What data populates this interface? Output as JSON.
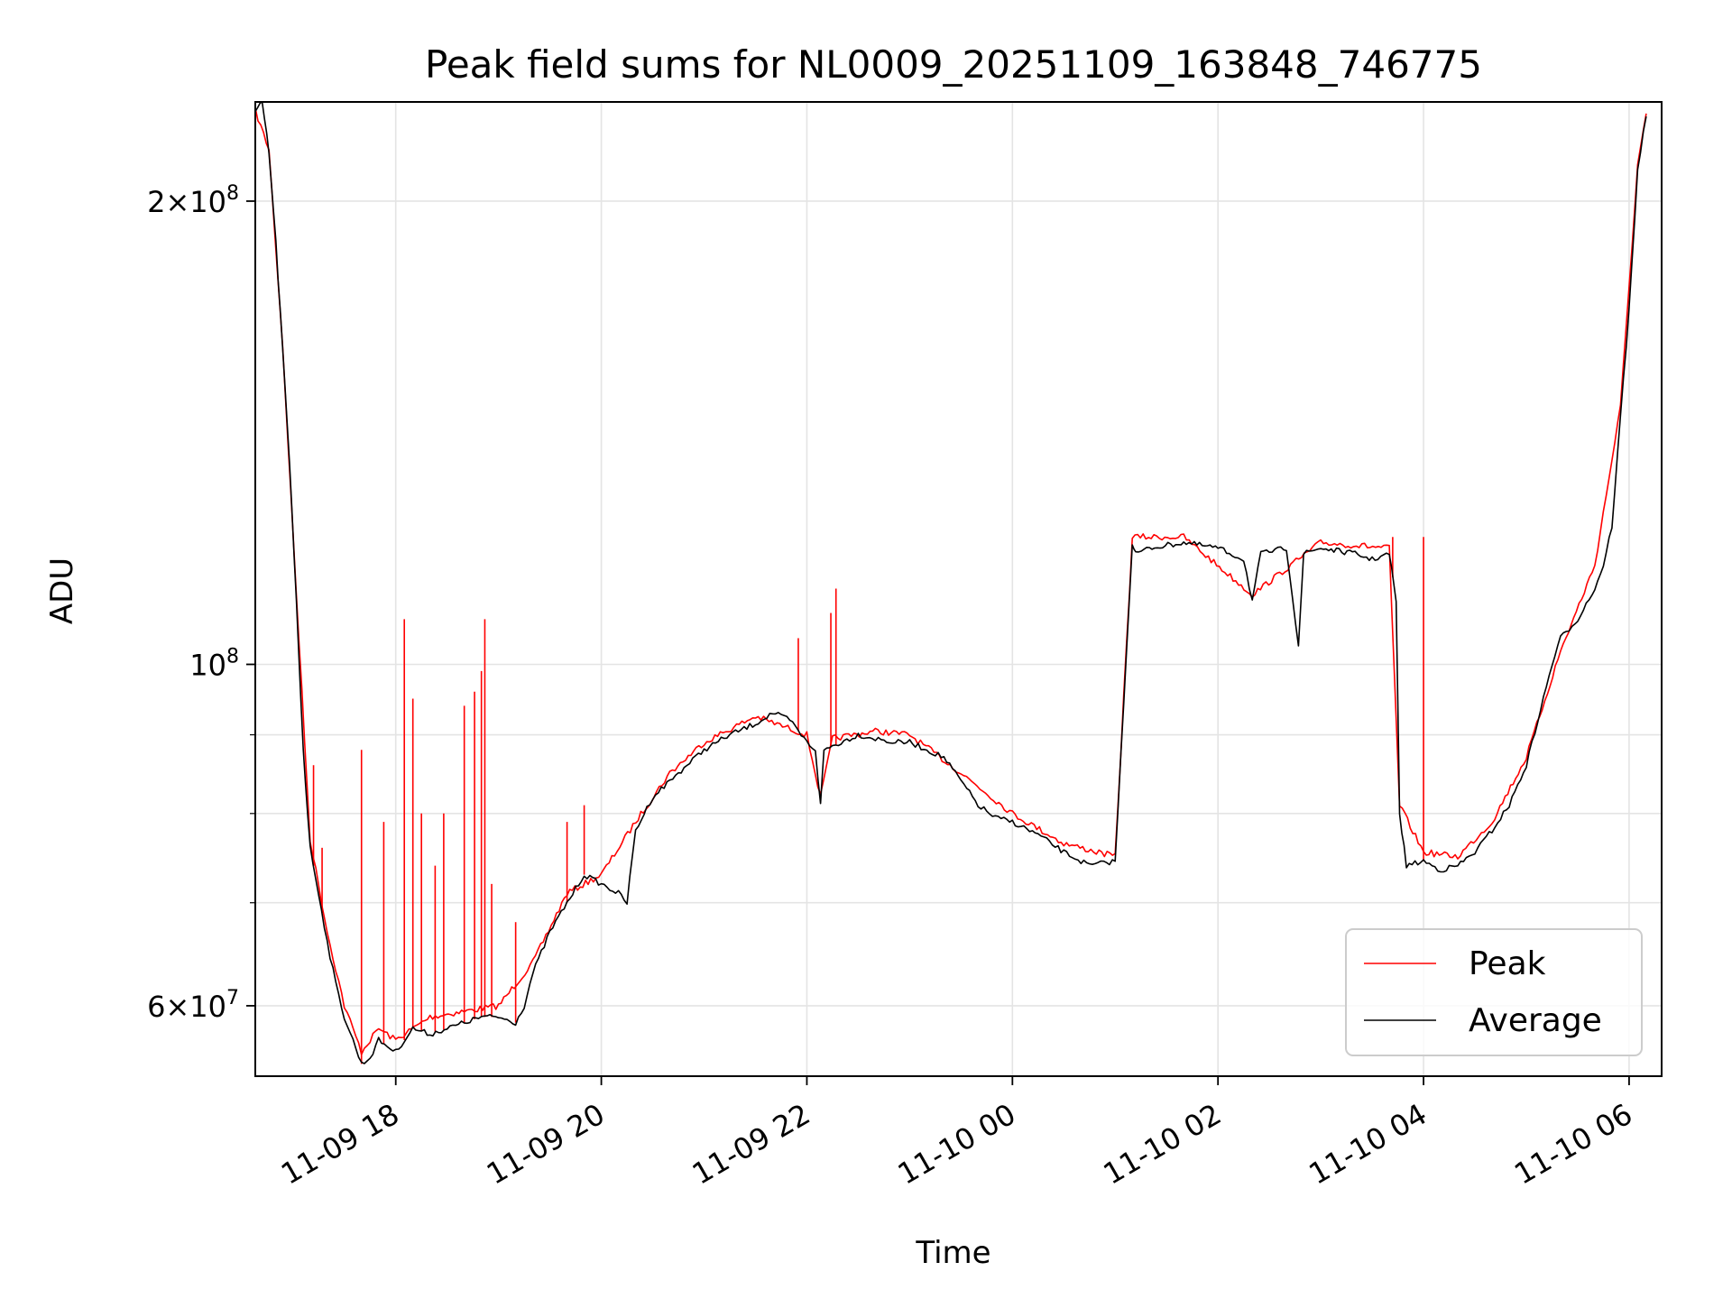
{
  "chart_data": {
    "type": "line",
    "title": "Peak field sums for NL0009_20251109_163848_746775",
    "xlabel": "Time",
    "ylabel": "ADU",
    "xlim": [
      "2025-11-09 16:38",
      "2025-11-10 06:19"
    ],
    "ylim": [
      54000000,
      232000000
    ],
    "yscale": "log",
    "grid": true,
    "legend_position": "lower-right",
    "x_ticks": [
      "11-09 18",
      "11-09 20",
      "11-09 22",
      "11-10 00",
      "11-10 02",
      "11-10 04",
      "11-10 06"
    ],
    "x_tick_times": [
      "2025-11-09 18:00",
      "2025-11-09 20:00",
      "2025-11-09 22:00",
      "2025-11-10 00:00",
      "2025-11-10 02:00",
      "2025-11-10 04:00",
      "2025-11-10 06:00"
    ],
    "y_major_ticks": [
      {
        "value": 60000000,
        "mantissa": "6",
        "base": "10",
        "exponent": "7"
      },
      {
        "value": 100000000,
        "mantissa": "",
        "base": "10",
        "exponent": "8"
      },
      {
        "value": 200000000,
        "mantissa": "2",
        "base": "10",
        "exponent": "8"
      }
    ],
    "y_minor_ticks": [
      70000000,
      80000000,
      90000000
    ],
    "series": [
      {
        "name": "Average",
        "color": "#000000",
        "x": [
          "2025-11-09 16:38",
          "2025-11-09 16:42",
          "2025-11-09 16:46",
          "2025-11-09 16:50",
          "2025-11-09 16:54",
          "2025-11-09 16:58",
          "2025-11-09 17:02",
          "2025-11-09 17:06",
          "2025-11-09 17:10",
          "2025-11-09 17:15",
          "2025-11-09 17:20",
          "2025-11-09 17:25",
          "2025-11-09 17:30",
          "2025-11-09 17:35",
          "2025-11-09 17:40",
          "2025-11-09 17:45",
          "2025-11-09 17:50",
          "2025-11-09 17:55",
          "2025-11-09 18:00",
          "2025-11-09 18:10",
          "2025-11-09 18:20",
          "2025-11-09 18:30",
          "2025-11-09 18:40",
          "2025-11-09 18:50",
          "2025-11-09 19:00",
          "2025-11-09 19:10",
          "2025-11-09 19:15",
          "2025-11-09 19:20",
          "2025-11-09 19:30",
          "2025-11-09 19:40",
          "2025-11-09 19:50",
          "2025-11-09 20:00",
          "2025-11-09 20:10",
          "2025-11-09 20:15",
          "2025-11-09 20:20",
          "2025-11-09 20:30",
          "2025-11-09 20:40",
          "2025-11-09 20:50",
          "2025-11-09 21:00",
          "2025-11-09 21:15",
          "2025-11-09 21:30",
          "2025-11-09 21:40",
          "2025-11-09 21:50",
          "2025-11-09 22:00",
          "2025-11-09 22:05",
          "2025-11-09 22:08",
          "2025-11-09 22:10",
          "2025-11-09 22:15",
          "2025-11-09 22:30",
          "2025-11-09 22:40",
          "2025-11-09 22:50",
          "2025-11-09 23:00",
          "2025-11-09 23:10",
          "2025-11-09 23:20",
          "2025-11-09 23:30",
          "2025-11-09 23:40",
          "2025-11-09 23:50",
          "2025-11-10 00:00",
          "2025-11-10 00:15",
          "2025-11-10 00:30",
          "2025-11-10 00:45",
          "2025-11-10 01:00",
          "2025-11-10 01:10",
          "2025-11-10 01:12",
          "2025-11-10 01:20",
          "2025-11-10 01:40",
          "2025-11-10 02:00",
          "2025-11-10 02:15",
          "2025-11-10 02:20",
          "2025-11-10 02:25",
          "2025-11-10 02:40",
          "2025-11-10 02:47",
          "2025-11-10 02:50",
          "2025-11-10 03:00",
          "2025-11-10 03:20",
          "2025-11-10 03:30",
          "2025-11-10 03:40",
          "2025-11-10 03:44",
          "2025-11-10 03:46",
          "2025-11-10 03:50",
          "2025-11-10 04:00",
          "2025-11-10 04:10",
          "2025-11-10 04:20",
          "2025-11-10 04:30",
          "2025-11-10 04:40",
          "2025-11-10 04:50",
          "2025-11-10 05:00",
          "2025-11-10 05:10",
          "2025-11-10 05:15",
          "2025-11-10 05:20",
          "2025-11-10 05:30",
          "2025-11-10 05:40",
          "2025-11-10 05:45",
          "2025-11-10 05:50",
          "2025-11-10 05:55",
          "2025-11-10 06:00",
          "2025-11-10 06:05",
          "2025-11-10 06:10"
        ],
        "y": [
          228000000,
          232000000,
          215000000,
          188000000,
          160000000,
          135000000,
          110000000,
          88000000,
          76000000,
          71000000,
          66000000,
          62000000,
          59000000,
          57000000,
          55000000,
          55500000,
          57000000,
          56500000,
          56000000,
          58000000,
          57500000,
          58000000,
          58500000,
          59000000,
          59000000,
          58500000,
          60000000,
          63000000,
          67000000,
          70000000,
          73000000,
          72000000,
          71000000,
          70000000,
          78000000,
          82000000,
          84000000,
          86000000,
          88000000,
          90000000,
          91500000,
          93000000,
          92000000,
          89000000,
          88000000,
          81000000,
          88000000,
          88500000,
          90000000,
          89500000,
          89000000,
          89000000,
          88000000,
          87000000,
          84000000,
          81000000,
          79500000,
          79000000,
          77500000,
          75500000,
          74000000,
          74500000,
          120000000,
          118000000,
          119000000,
          120000000,
          119000000,
          117000000,
          110000000,
          118000000,
          119000000,
          103000000,
          118000000,
          119000000,
          118000000,
          117000000,
          118000000,
          110000000,
          80000000,
          74000000,
          74500000,
          73500000,
          74000000,
          75500000,
          78000000,
          81000000,
          86000000,
          95000000,
          100000000,
          104000000,
          107000000,
          112000000,
          116000000,
          123000000,
          145000000,
          170000000,
          210000000,
          227000000
        ]
      },
      {
        "name": "Peak",
        "color": "#ff0000",
        "x": [
          "2025-11-09 16:38",
          "2025-11-09 16:46",
          "2025-11-09 16:54",
          "2025-11-09 17:02",
          "2025-11-09 17:10",
          "2025-11-09 17:20",
          "2025-11-09 17:30",
          "2025-11-09 17:40",
          "2025-11-09 17:50",
          "2025-11-09 18:00",
          "2025-11-09 18:20",
          "2025-11-09 18:40",
          "2025-11-09 19:00",
          "2025-11-09 19:20",
          "2025-11-09 19:40",
          "2025-11-09 20:00",
          "2025-11-09 20:20",
          "2025-11-09 20:40",
          "2025-11-09 21:00",
          "2025-11-09 21:30",
          "2025-11-09 22:00",
          "2025-11-09 22:08",
          "2025-11-09 22:15",
          "2025-11-09 22:40",
          "2025-11-09 23:00",
          "2025-11-09 23:30",
          "2025-11-10 00:00",
          "2025-11-10 00:30",
          "2025-11-10 01:00",
          "2025-11-10 01:10",
          "2025-11-10 01:40",
          "2025-11-10 02:20",
          "2025-11-10 03:00",
          "2025-11-10 03:40",
          "2025-11-10 03:46",
          "2025-11-10 04:00",
          "2025-11-10 04:20",
          "2025-11-10 04:40",
          "2025-11-10 05:00",
          "2025-11-10 05:20",
          "2025-11-10 05:40",
          "2025-11-10 05:55",
          "2025-11-10 06:05",
          "2025-11-10 06:10"
        ],
        "y": [
          229000000,
          216000000,
          161000000,
          111000000,
          77000000,
          67000000,
          60000000,
          56000000,
          58000000,
          57000000,
          59000000,
          59500000,
          60000000,
          64000000,
          71000000,
          73000000,
          79000000,
          85000000,
          89000000,
          92500000,
          90000000,
          82000000,
          89500000,
          90500000,
          90000000,
          85000000,
          80000000,
          76500000,
          75000000,
          121000000,
          121000000,
          111000000,
          120000000,
          119000000,
          81000000,
          75500000,
          75000000,
          79000000,
          87000000,
          102000000,
          116000000,
          147000000,
          211000000,
          228000000
        ]
      }
    ],
    "peak_spikes": [
      {
        "x": "2025-11-09 17:12",
        "y": 86000000
      },
      {
        "x": "2025-11-09 17:17",
        "y": 76000000
      },
      {
        "x": "2025-11-09 17:40",
        "y": 88000000
      },
      {
        "x": "2025-11-09 17:53",
        "y": 79000000
      },
      {
        "x": "2025-11-09 18:05",
        "y": 107000000
      },
      {
        "x": "2025-11-09 18:10",
        "y": 95000000
      },
      {
        "x": "2025-11-09 18:15",
        "y": 80000000
      },
      {
        "x": "2025-11-09 18:23",
        "y": 74000000
      },
      {
        "x": "2025-11-09 18:28",
        "y": 80000000
      },
      {
        "x": "2025-11-09 18:40",
        "y": 94000000
      },
      {
        "x": "2025-11-09 18:46",
        "y": 96000000
      },
      {
        "x": "2025-11-09 18:50",
        "y": 99000000
      },
      {
        "x": "2025-11-09 18:52",
        "y": 107000000
      },
      {
        "x": "2025-11-09 18:56",
        "y": 72000000
      },
      {
        "x": "2025-11-09 19:10",
        "y": 68000000
      },
      {
        "x": "2025-11-09 19:40",
        "y": 79000000
      },
      {
        "x": "2025-11-09 19:50",
        "y": 81000000
      },
      {
        "x": "2025-11-09 21:55",
        "y": 104000000
      },
      {
        "x": "2025-11-09 22:14",
        "y": 108000000
      },
      {
        "x": "2025-11-09 22:17",
        "y": 112000000
      },
      {
        "x": "2025-11-10 03:42",
        "y": 121000000
      },
      {
        "x": "2025-11-10 04:00",
        "y": 121000000
      }
    ]
  }
}
